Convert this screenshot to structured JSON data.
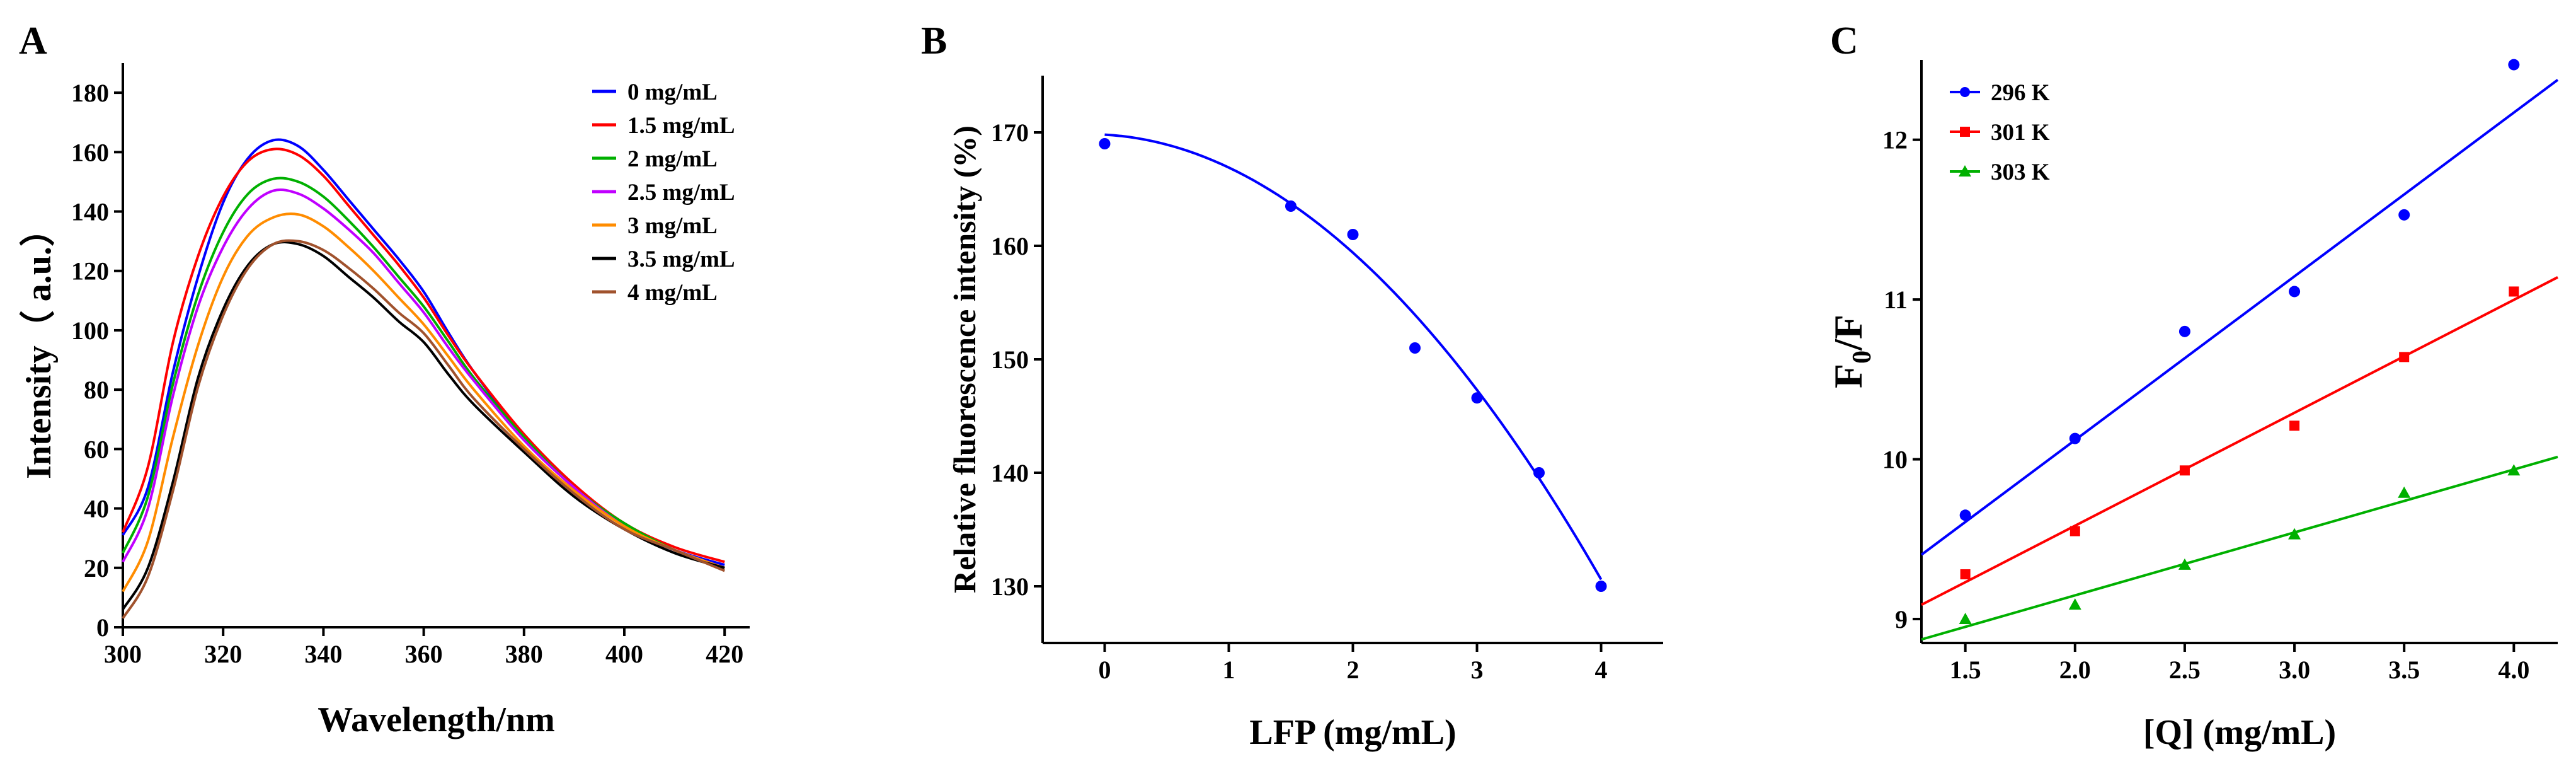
{
  "chart_data": [
    {
      "type": "line",
      "panel": "A",
      "xlabel": "Wavelength/nm",
      "ylabel": "Intensity（ a.u.）",
      "xlim": [
        300,
        425
      ],
      "ylim": [
        0,
        190
      ],
      "xticks": [
        300,
        320,
        340,
        360,
        380,
        400,
        420
      ],
      "yticks": [
        0,
        20,
        40,
        60,
        80,
        100,
        120,
        140,
        160,
        180
      ],
      "legend_position": "top-right",
      "x": [
        300,
        305,
        310,
        315,
        320,
        325,
        330,
        335,
        340,
        345,
        350,
        355,
        360,
        365,
        370,
        380,
        390,
        400,
        410,
        420
      ],
      "series": [
        {
          "name": "0 mg/mL",
          "color": "#0000ff",
          "values": [
            31,
            47,
            86,
            118,
            143,
            158,
            164,
            162,
            154,
            144,
            134,
            124,
            113,
            99,
            86,
            64,
            47,
            34,
            26,
            21
          ]
        },
        {
          "name": "1.5 mg/mL",
          "color": "#ff0000",
          "values": [
            32,
            54,
            96,
            125,
            145,
            157,
            161,
            159,
            152,
            142,
            132,
            122,
            111,
            98,
            86,
            65,
            48,
            35,
            27,
            22
          ]
        },
        {
          "name": "2 mg/mL",
          "color": "#00b000",
          "values": [
            25,
            44,
            82,
            112,
            133,
            146,
            151,
            150,
            145,
            137,
            128,
            118,
            108,
            96,
            84,
            64,
            47,
            35,
            26,
            20
          ]
        },
        {
          "name": "2.5 mg/mL",
          "color": "#c000ff",
          "values": [
            22,
            40,
            78,
            108,
            128,
            141,
            147,
            146,
            141,
            134,
            126,
            116,
            106,
            94,
            83,
            63,
            47,
            34,
            26,
            20
          ]
        },
        {
          "name": "3 mg/mL",
          "color": "#ff8c00",
          "values": [
            12,
            29,
            64,
            95,
            118,
            132,
            138,
            139,
            135,
            128,
            120,
            111,
            102,
            91,
            80,
            61,
            46,
            34,
            26,
            20
          ]
        },
        {
          "name": "3.5 mg/mL",
          "color": "#000000",
          "values": [
            6,
            20,
            49,
            84,
            107,
            122,
            129,
            129,
            125,
            118,
            111,
            103,
            96,
            85,
            75,
            59,
            44,
            33,
            25,
            20
          ]
        },
        {
          "name": "4 mg/mL",
          "color": "#a0522d",
          "values": [
            3,
            17,
            46,
            81,
            105,
            121,
            129,
            130,
            127,
            121,
            114,
            106,
            99,
            88,
            77,
            60,
            45,
            33,
            26,
            19
          ]
        }
      ]
    },
    {
      "type": "scatter",
      "panel": "B",
      "xlabel": "LFP (mg/mL)",
      "ylabel": "Relative fluorescence intensity (%)",
      "xlim": [
        -0.5,
        4.5
      ],
      "ylim": [
        125,
        175
      ],
      "xticks": [
        0,
        1,
        2,
        3,
        4
      ],
      "yticks": [
        130,
        140,
        150,
        160,
        170
      ],
      "series": [
        {
          "name": "data",
          "color": "#0000ff",
          "x": [
            0,
            1.5,
            2,
            2.5,
            3,
            3.5,
            4
          ],
          "values": [
            169,
            163.5,
            161,
            151,
            146.6,
            140,
            130
          ]
        }
      ],
      "fit": {
        "type": "quadratic",
        "color": "#0000ff",
        "x_range": [
          0,
          4
        ],
        "coefficients": [
          169.8,
          -0.6,
          -2.3
        ]
      }
    },
    {
      "type": "scatter",
      "panel": "C",
      "xlabel": "[Q] (mg/mL)",
      "ylabel": "F0/F",
      "ylabel_main": "F",
      "ylabel_sub": "0",
      "ylabel_tail": "/F",
      "xlim": [
        1.3,
        4.2
      ],
      "ylim": [
        8.85,
        12.5
      ],
      "xticks": [
        1.5,
        2.0,
        2.5,
        3.0,
        3.5,
        4.0
      ],
      "xtick_labels": [
        "1.5",
        "2.0",
        "2.5",
        "3.0",
        "3.5",
        "4.0"
      ],
      "yticks": [
        9,
        10,
        11,
        12
      ],
      "legend_position": "top-left",
      "series": [
        {
          "name": "296 K",
          "color": "#0000ff",
          "marker": "circle",
          "x": [
            1.5,
            2.0,
            2.5,
            3.0,
            3.5,
            4.0
          ],
          "values": [
            9.65,
            10.13,
            10.8,
            11.05,
            11.53,
            12.47
          ],
          "fit": {
            "slope": 1.025,
            "intercept": 8.07
          }
        },
        {
          "name": "301 K",
          "color": "#ff0000",
          "marker": "square",
          "x": [
            1.5,
            2.0,
            2.5,
            3.0,
            3.5,
            4.0
          ],
          "values": [
            9.28,
            9.55,
            9.93,
            10.21,
            10.64,
            11.05
          ],
          "fit": {
            "slope": 0.707,
            "intercept": 8.17
          }
        },
        {
          "name": "303 K",
          "color": "#00b000",
          "marker": "triangle",
          "x": [
            1.5,
            2.0,
            2.5,
            3.0,
            3.5,
            4.0
          ],
          "values": [
            9.0,
            9.09,
            9.34,
            9.53,
            9.79,
            9.93
          ],
          "fit": {
            "slope": 0.394,
            "intercept": 8.36
          }
        }
      ]
    }
  ]
}
